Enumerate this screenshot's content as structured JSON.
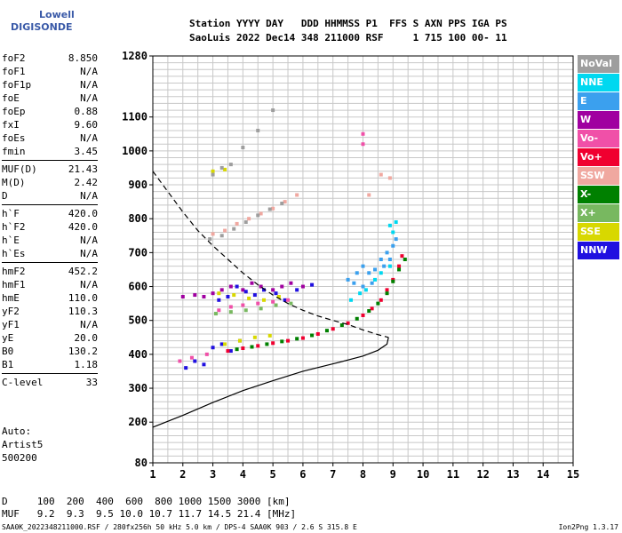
{
  "logo": {
    "line1": "Lowell",
    "line2": "DIGISONDE"
  },
  "header": {
    "line1": "Station YYYY DAY   DDD HHMMSS P1  FFS S AXN PPS IGA PS",
    "line2": "SaoLuis 2022 Dec14 348 211000 RSF     1 715 100 00- 11"
  },
  "params": [
    [
      {
        "k": "foF2",
        "v": "8.850"
      },
      {
        "k": "foF1",
        "v": "N/A"
      },
      {
        "k": "foF1p",
        "v": "N/A"
      },
      {
        "k": "foE",
        "v": "N/A"
      },
      {
        "k": "foEp",
        "v": "0.88"
      },
      {
        "k": "fxI",
        "v": "9.60"
      },
      {
        "k": "foEs",
        "v": "N/A"
      },
      {
        "k": "fmin",
        "v": "3.45"
      }
    ],
    [
      {
        "k": "MUF(D)",
        "v": "21.43"
      },
      {
        "k": "M(D)",
        "v": "2.42"
      },
      {
        "k": "D",
        "v": "N/A"
      }
    ],
    [
      {
        "k": "h`F",
        "v": "420.0"
      },
      {
        "k": "h`F2",
        "v": "420.0"
      },
      {
        "k": "h`E",
        "v": "N/A"
      },
      {
        "k": "h`Es",
        "v": "N/A"
      }
    ],
    [
      {
        "k": "hmF2",
        "v": "452.2"
      },
      {
        "k": "hmF1",
        "v": "N/A"
      },
      {
        "k": "hmE",
        "v": "110.0"
      },
      {
        "k": "yF2",
        "v": "110.3"
      },
      {
        "k": "yF1",
        "v": "N/A"
      },
      {
        "k": "yE",
        "v": "20.0"
      },
      {
        "k": "B0",
        "v": "130.2"
      },
      {
        "k": "B1",
        "v": "1.18"
      }
    ],
    [
      {
        "k": "C-level",
        "v": "33"
      }
    ]
  ],
  "extra": {
    "auto": "Auto:",
    "artist": "Artist5",
    "version": "500200"
  },
  "legend": [
    {
      "label": "NoVal",
      "color": "#9e9e9e"
    },
    {
      "label": "NNE",
      "color": "#00d8f0"
    },
    {
      "label": "E",
      "color": "#3ba0ee"
    },
    {
      "label": "W",
      "color": "#a000a0"
    },
    {
      "label": "Vo-",
      "color": "#f050a8"
    },
    {
      "label": "Vo+",
      "color": "#f00030"
    },
    {
      "label": "SSW",
      "color": "#f0a8a0"
    },
    {
      "label": "X-",
      "color": "#008000"
    },
    {
      "label": "X+",
      "color": "#78b860"
    },
    {
      "label": "SSE",
      "color": "#d8d800"
    },
    {
      "label": "NNW",
      "color": "#2010e0"
    }
  ],
  "chart_data": {
    "type": "scatter",
    "title": "",
    "xlabel": "",
    "ylabel": "",
    "xlim": [
      1,
      15
    ],
    "ylim": [
      80,
      1280
    ],
    "x_ticks": [
      "1",
      "2",
      "3",
      "4",
      "5",
      "6",
      "7",
      "8",
      "9",
      "10",
      "11",
      "12",
      "13",
      "14",
      "15"
    ],
    "y_ticks": [
      {
        "v": 80,
        "label": "80"
      },
      {
        "v": 200,
        "label": "200"
      },
      {
        "v": 300,
        "label": "300"
      },
      {
        "v": 400,
        "label": "400"
      },
      {
        "v": 500,
        "label": "500"
      },
      {
        "v": 600,
        "label": "600"
      },
      {
        "v": 700,
        "label": "700"
      },
      {
        "v": 800,
        "label": "800"
      },
      {
        "v": 900,
        "label": "900"
      },
      {
        "v": 1000,
        "label": "1000"
      },
      {
        "v": 1100,
        "label": "1100"
      },
      {
        "v": 1280,
        "label": "1280"
      }
    ],
    "grid": true,
    "series": [
      {
        "name": "solid",
        "style": "solid",
        "points": [
          [
            1,
            185
          ],
          [
            2,
            220
          ],
          [
            3,
            258
          ],
          [
            4,
            293
          ],
          [
            5,
            322
          ],
          [
            6,
            350
          ],
          [
            7,
            372
          ],
          [
            8,
            395
          ],
          [
            8.5,
            412
          ],
          [
            8.8,
            430
          ],
          [
            8.85,
            450
          ]
        ]
      },
      {
        "name": "dashed",
        "style": "dashed",
        "points": [
          [
            1,
            940
          ],
          [
            1.5,
            880
          ],
          [
            2,
            820
          ],
          [
            2.5,
            765
          ],
          [
            3,
            720
          ],
          [
            3.5,
            680
          ],
          [
            4,
            640
          ],
          [
            4.5,
            605
          ],
          [
            5,
            575
          ],
          [
            5.5,
            550
          ],
          [
            6,
            530
          ],
          [
            6.5,
            513
          ],
          [
            7,
            500
          ],
          [
            7.5,
            488
          ],
          [
            8,
            472
          ],
          [
            8.5,
            458
          ],
          [
            8.85,
            450
          ]
        ]
      }
    ],
    "traces": [
      {
        "name": "E",
        "color": "#3ba0ee",
        "points": [
          [
            7.5,
            620
          ],
          [
            7.8,
            640
          ],
          [
            8.0,
            660
          ],
          [
            8.2,
            640
          ],
          [
            8.4,
            650
          ],
          [
            8.6,
            680
          ],
          [
            8.8,
            700
          ],
          [
            9.0,
            720
          ],
          [
            9.1,
            740
          ],
          [
            8.9,
            680
          ],
          [
            8.7,
            660
          ],
          [
            8.3,
            610
          ],
          [
            8.0,
            600
          ],
          [
            7.7,
            610
          ]
        ]
      },
      {
        "name": "W",
        "color": "#a000a0",
        "points": [
          [
            3.0,
            580
          ],
          [
            3.3,
            590
          ],
          [
            3.6,
            600
          ],
          [
            4.0,
            590
          ],
          [
            4.3,
            610
          ],
          [
            4.6,
            600
          ],
          [
            5.0,
            590
          ],
          [
            5.3,
            600
          ],
          [
            5.6,
            610
          ],
          [
            6.0,
            600
          ],
          [
            2.0,
            570
          ],
          [
            2.4,
            575
          ],
          [
            2.7,
            570
          ]
        ]
      },
      {
        "name": "NNW",
        "color": "#2010e0",
        "points": [
          [
            3.2,
            560
          ],
          [
            3.5,
            570
          ],
          [
            3.8,
            600
          ],
          [
            4.1,
            585
          ],
          [
            4.4,
            575
          ],
          [
            4.7,
            590
          ],
          [
            5.1,
            580
          ],
          [
            5.4,
            560
          ],
          [
            5.8,
            590
          ],
          [
            6.3,
            605
          ],
          [
            3.0,
            420
          ],
          [
            3.3,
            430
          ],
          [
            3.6,
            410
          ],
          [
            3.9,
            440
          ],
          [
            2.1,
            360
          ],
          [
            2.4,
            380
          ],
          [
            2.7,
            370
          ]
        ]
      },
      {
        "name": "Vo+",
        "color": "#f00030",
        "points": [
          [
            3.5,
            410
          ],
          [
            4.0,
            418
          ],
          [
            4.5,
            425
          ],
          [
            5.0,
            433
          ],
          [
            5.5,
            440
          ],
          [
            6.0,
            448
          ],
          [
            6.5,
            460
          ],
          [
            7.0,
            475
          ],
          [
            7.5,
            492
          ],
          [
            8.0,
            515
          ],
          [
            8.3,
            535
          ],
          [
            8.6,
            560
          ],
          [
            8.8,
            590
          ],
          [
            9.0,
            620
          ],
          [
            9.2,
            660
          ],
          [
            9.3,
            690
          ]
        ]
      },
      {
        "name": "X-",
        "color": "#008000",
        "points": [
          [
            3.8,
            415
          ],
          [
            4.3,
            422
          ],
          [
            4.8,
            430
          ],
          [
            5.3,
            438
          ],
          [
            5.8,
            446
          ],
          [
            6.3,
            456
          ],
          [
            6.8,
            470
          ],
          [
            7.3,
            486
          ],
          [
            7.8,
            505
          ],
          [
            8.2,
            528
          ],
          [
            8.5,
            550
          ],
          [
            8.8,
            580
          ],
          [
            9.0,
            615
          ],
          [
            9.2,
            650
          ],
          [
            9.4,
            680
          ]
        ]
      },
      {
        "name": "SSE",
        "color": "#d8d800",
        "points": [
          [
            3.2,
            580
          ],
          [
            3.7,
            575
          ],
          [
            4.2,
            565
          ],
          [
            4.7,
            560
          ],
          [
            5.2,
            570
          ],
          [
            3.4,
            430
          ],
          [
            3.9,
            440
          ],
          [
            4.4,
            450
          ],
          [
            4.9,
            455
          ],
          [
            3.0,
            940
          ],
          [
            3.4,
            945
          ]
        ]
      },
      {
        "name": "NNE",
        "color": "#00d8f0",
        "points": [
          [
            7.6,
            560
          ],
          [
            7.9,
            580
          ],
          [
            8.1,
            590
          ],
          [
            8.4,
            620
          ],
          [
            8.6,
            640
          ],
          [
            8.9,
            660
          ],
          [
            9.0,
            760
          ],
          [
            9.1,
            790
          ],
          [
            8.9,
            780
          ]
        ]
      },
      {
        "name": "Vo-",
        "color": "#f050a8",
        "points": [
          [
            1.9,
            380
          ],
          [
            2.3,
            390
          ],
          [
            2.8,
            400
          ],
          [
            3.2,
            530
          ],
          [
            3.6,
            540
          ],
          [
            4.0,
            545
          ],
          [
            4.5,
            550
          ],
          [
            5.0,
            555
          ],
          [
            5.5,
            560
          ],
          [
            8.0,
            1020
          ],
          [
            8.0,
            1050
          ]
        ]
      },
      {
        "name": "X+",
        "color": "#78b860",
        "points": [
          [
            3.1,
            520
          ],
          [
            3.6,
            525
          ],
          [
            4.1,
            530
          ],
          [
            4.6,
            535
          ],
          [
            5.1,
            545
          ],
          [
            5.6,
            550
          ]
        ]
      },
      {
        "name": "SSW",
        "color": "#f0a8a0",
        "points": [
          [
            3.0,
            755
          ],
          [
            3.4,
            765
          ],
          [
            3.8,
            785
          ],
          [
            4.2,
            800
          ],
          [
            4.6,
            815
          ],
          [
            5.0,
            830
          ],
          [
            5.4,
            850
          ],
          [
            5.8,
            870
          ],
          [
            8.6,
            930
          ],
          [
            8.9,
            920
          ],
          [
            8.2,
            870
          ]
        ]
      },
      {
        "name": "NoVal",
        "color": "#9e9e9e",
        "points": [
          [
            2.9,
            740
          ],
          [
            3.3,
            750
          ],
          [
            3.7,
            770
          ],
          [
            4.1,
            790
          ],
          [
            4.5,
            810
          ],
          [
            4.9,
            828
          ],
          [
            5.3,
            845
          ],
          [
            3.0,
            930
          ],
          [
            3.3,
            950
          ],
          [
            3.6,
            960
          ],
          [
            4.0,
            1010
          ],
          [
            4.5,
            1060
          ],
          [
            5.0,
            1120
          ]
        ]
      }
    ]
  },
  "footer": {
    "d_line": "D     100  200  400  600  800 1000 1500 3000 [km]",
    "muf_line": "MUF   9.2  9.3  9.5 10.0 10.7 11.7 14.5 21.4 [MHz]",
    "file_line": "SAA0K_2022348211000.RSF / 280fx256h 50 kHz 5.0 km / DPS-4 SAA0K 903 / 2.6 S 315.8 E",
    "version": "Ion2Png 1.3.17"
  }
}
